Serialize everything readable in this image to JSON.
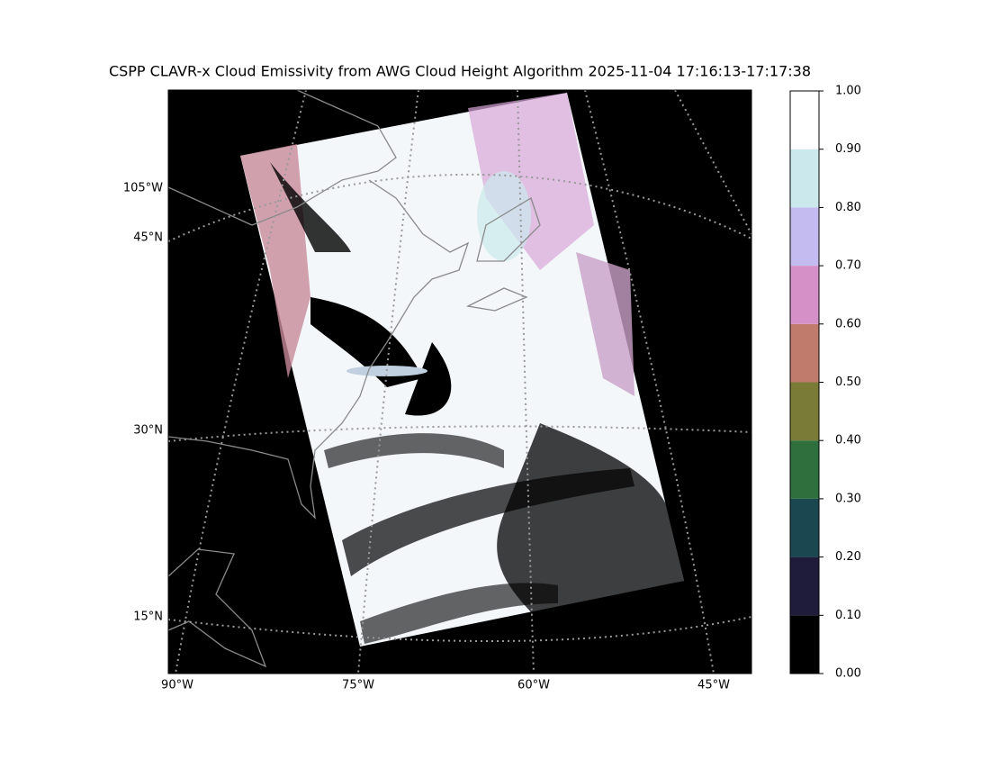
{
  "title": "CSPP CLAVR-x Cloud Emissivity from AWG Cloud Height Algorithm 2025-11-04 17:16:13-17:17:38",
  "map": {
    "lat_labels": [
      "105°W",
      "45°N",
      "30°N",
      "15°N"
    ],
    "lon_labels": [
      "90°W",
      "75°W",
      "60°W",
      "45°W"
    ]
  },
  "colorbar": {
    "ylim": [
      0,
      1
    ],
    "ticks": [
      {
        "value": 0,
        "label": "0.00"
      },
      {
        "value": 0.1,
        "label": "0.10"
      },
      {
        "value": 0.2,
        "label": "0.20"
      },
      {
        "value": 0.3,
        "label": "0.30"
      },
      {
        "value": 0.4,
        "label": "0.40"
      },
      {
        "value": 0.5,
        "label": "0.50"
      },
      {
        "value": 0.6,
        "label": "0.60"
      },
      {
        "value": 0.7,
        "label": "0.70"
      },
      {
        "value": 0.8,
        "label": "0.80"
      },
      {
        "value": 0.9,
        "label": "0.90"
      },
      {
        "value": 1,
        "label": "1.00"
      }
    ],
    "colors": [
      "#000000",
      "#1f1b3a",
      "#1b4850",
      "#2f6e3d",
      "#7a7b37",
      "#c07b6c",
      "#d690c8",
      "#c4bcf0",
      "#cbe9ec",
      "#ffffff"
    ]
  }
}
